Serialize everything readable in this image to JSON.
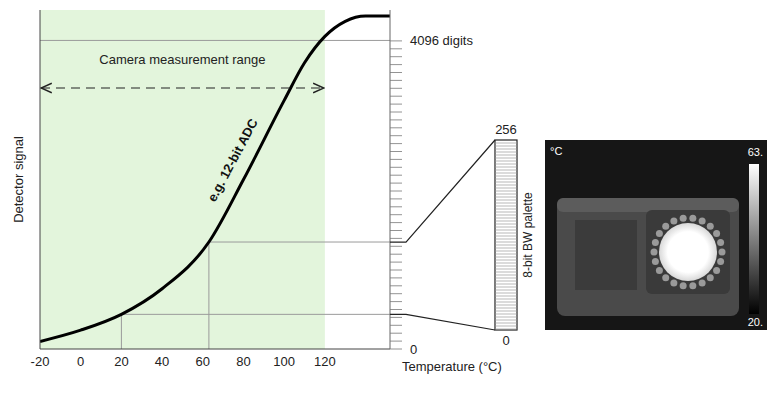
{
  "chart_data": {
    "type": "line",
    "x_label": "Temperature (°C)",
    "y_label": "Detector signal",
    "x": [
      -20,
      0,
      20,
      40,
      63,
      80,
      100,
      110,
      120,
      130,
      140,
      152
    ],
    "values": [
      100,
      250,
      460,
      800,
      1420,
      2250,
      3300,
      3800,
      4150,
      4350,
      4420,
      4420
    ],
    "color": "#000000",
    "xlim": [
      -20,
      152
    ],
    "xticks": [
      -20,
      0,
      20,
      40,
      60,
      80,
      100,
      120
    ],
    "ylim": [
      0,
      4500
    ],
    "yticks": [
      0,
      {
        "value": 4096,
        "label": "4096 digits"
      }
    ],
    "annotations": {
      "curve_label": "e.g. 12-bit ADC",
      "measurement_range": {
        "label": "Camera measurement range",
        "from": -20,
        "to": 120,
        "color": "#e3f5dc"
      }
    },
    "guides": [
      {
        "x": 20,
        "y": 460
      },
      {
        "x": 63,
        "y": 1420
      }
    ],
    "palette": {
      "label": "8-bit BW palette",
      "ticks": [
        0,
        256
      ]
    },
    "thermal_image": {
      "unit_label": "°C",
      "max_label": "63.",
      "min_label": "20."
    }
  }
}
